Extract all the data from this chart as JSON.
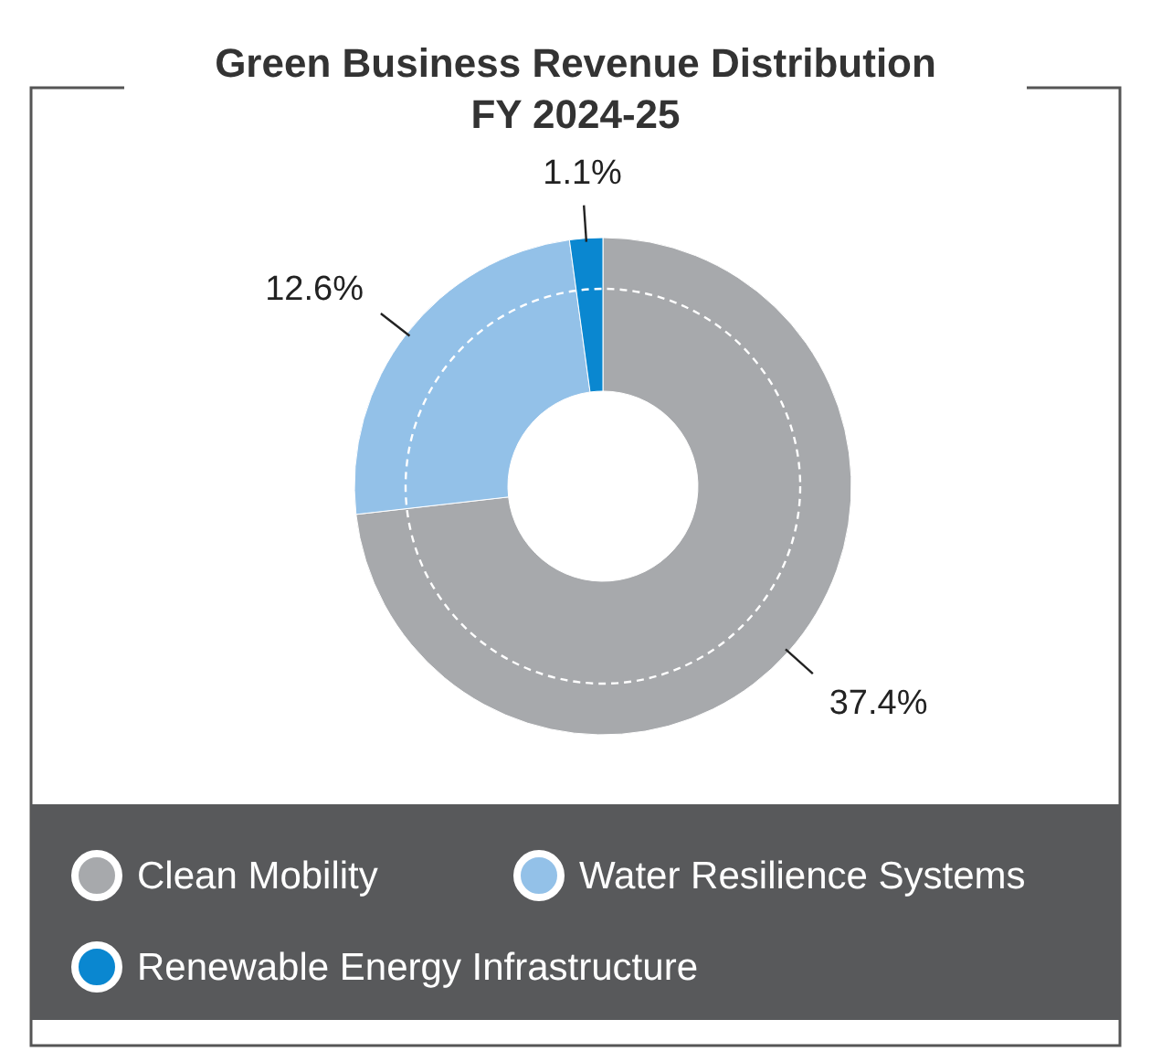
{
  "chart_data": {
    "type": "donut",
    "title": "Green Business Revenue Distribution FY 2024-25",
    "categories": [
      "Clean Mobility",
      "Water Resilience Systems",
      "Renewable Energy Infrastructure"
    ],
    "values": [
      37.4,
      12.6,
      1.1
    ],
    "colors": [
      "#a7a9ac",
      "#93c1e8",
      "#0a87d0"
    ],
    "value_labels": [
      "37.4%",
      "12.6%",
      "1.1%"
    ],
    "legend": "bottom"
  }
}
